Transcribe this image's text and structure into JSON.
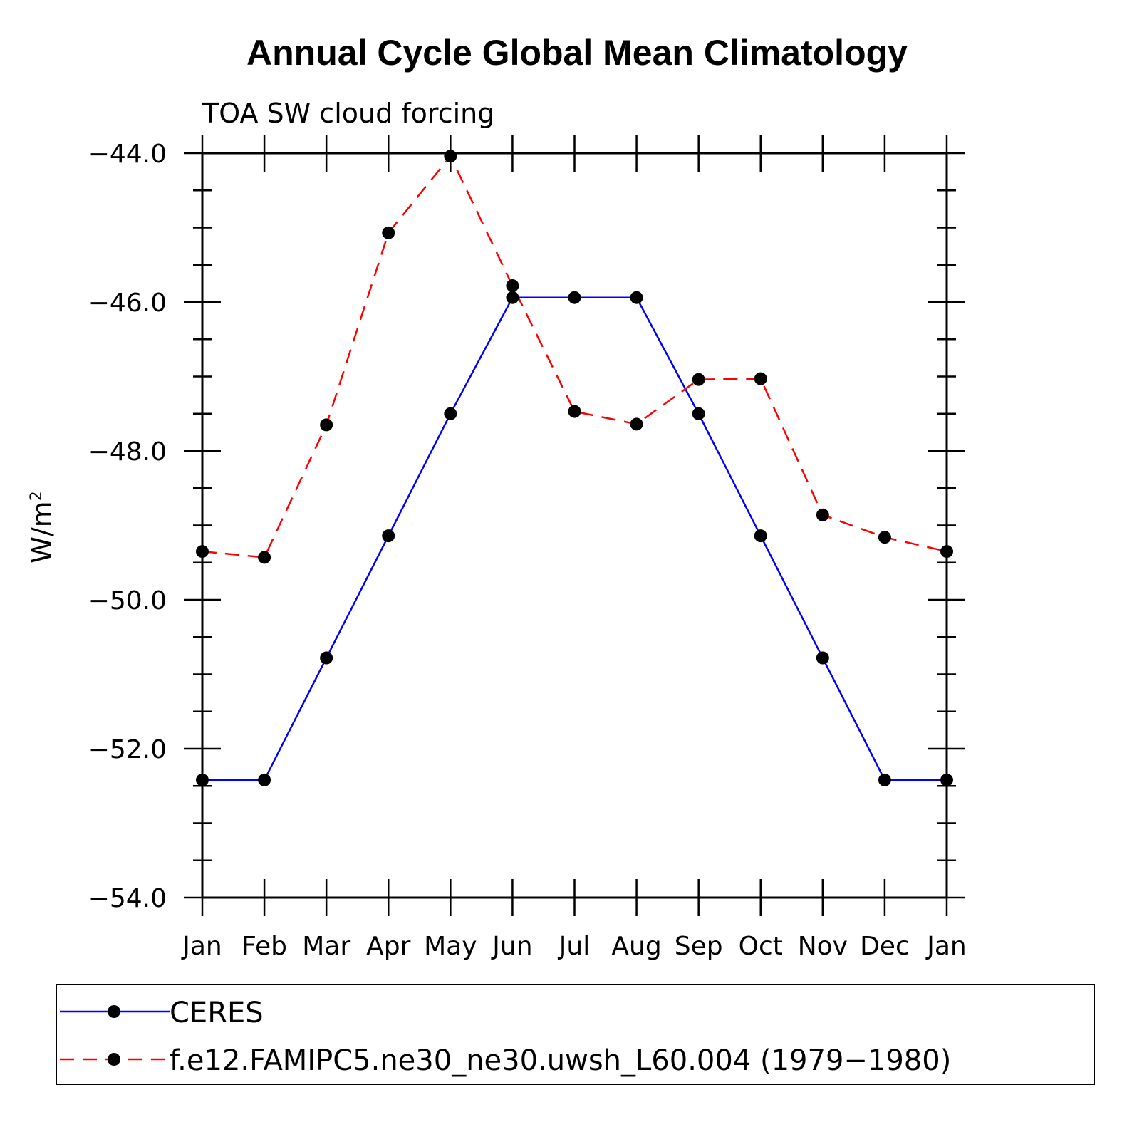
{
  "chart_data": {
    "type": "line",
    "title": "Annual Cycle Global Mean Climatology",
    "subtitle": "TOA SW cloud forcing",
    "xlabel": "",
    "ylabel": "W/m",
    "ylabel_superscript": "2",
    "categories": [
      "Jan",
      "Feb",
      "Mar",
      "Apr",
      "May",
      "Jun",
      "Jul",
      "Aug",
      "Sep",
      "Oct",
      "Nov",
      "Dec",
      "Jan"
    ],
    "ylim": [
      -54.0,
      -44.0
    ],
    "yticks": [
      -44.0,
      -46.0,
      -48.0,
      -50.0,
      -52.0,
      -54.0
    ],
    "ytick_labels": [
      "−44.0",
      "−46.0",
      "−48.0",
      "−50.0",
      "−52.0",
      "−54.0"
    ],
    "grid": false,
    "legend_position": "bottom",
    "series": [
      {
        "name": "CERES",
        "color": "#0000ff",
        "style": "solid",
        "values": [
          -52.42,
          -52.42,
          -50.78,
          -49.14,
          -47.5,
          -45.94,
          -45.94,
          -45.94,
          -47.5,
          -49.14,
          -50.78,
          -52.42,
          -52.42
        ]
      },
      {
        "name": "f.e12.FAMIPC5.ne30_ne30.uwsh_L60.004 (1979−1980)",
        "color": "#ff0000",
        "style": "dashed",
        "values": [
          -49.35,
          -49.43,
          -47.65,
          -45.07,
          -44.04,
          -45.78,
          -47.47,
          -47.64,
          -47.04,
          -47.03,
          -48.86,
          -49.16,
          -49.35
        ]
      }
    ]
  }
}
